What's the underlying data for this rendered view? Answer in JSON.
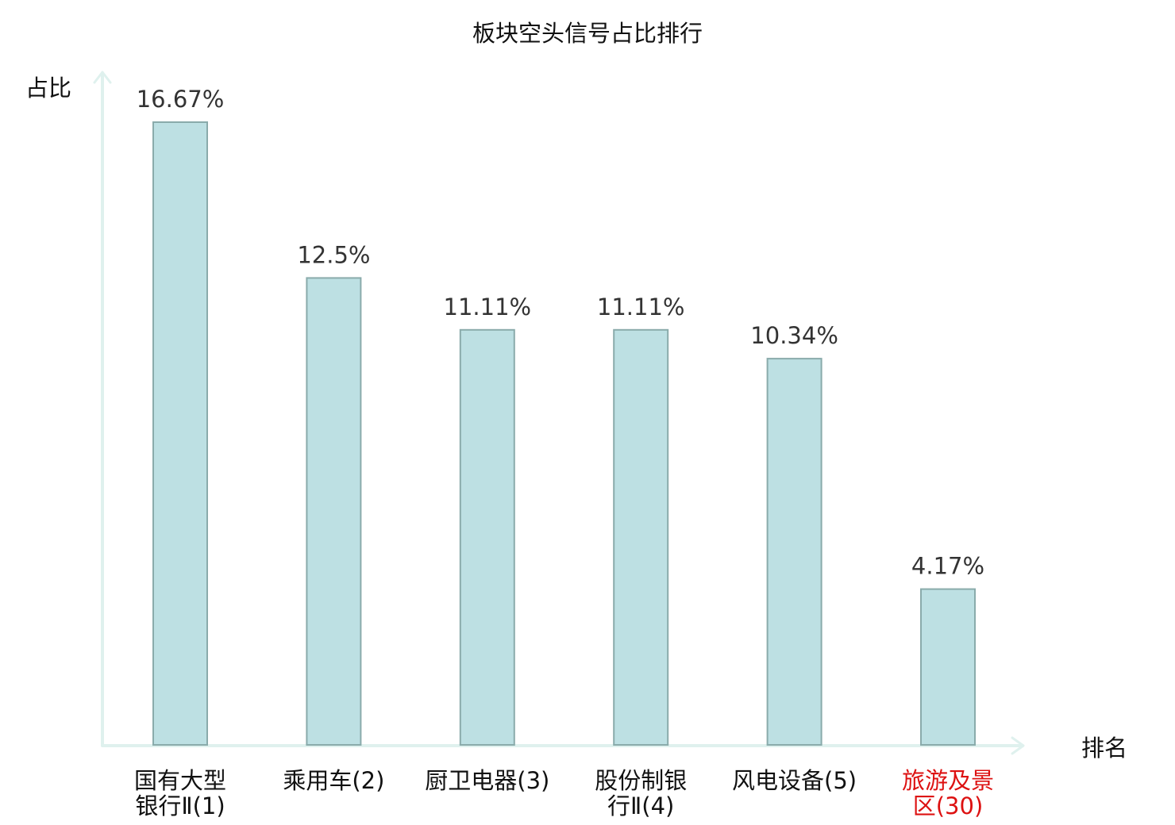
{
  "chart_data": {
    "type": "bar",
    "title": "板块空头信号占比排行",
    "ylabel": "占比",
    "xlabel": "排名",
    "ylim": [
      0,
      16.67
    ],
    "grid": false,
    "legend": "none",
    "categories": [
      [
        "国有大型",
        "银行Ⅱ(1)"
      ],
      [
        "乘用车(2)"
      ],
      [
        "厨卫电器(3)"
      ],
      [
        "股份制银",
        "行Ⅱ(4)"
      ],
      [
        "风电设备(5)"
      ],
      [
        "旅游及景",
        "区(30)"
      ]
    ],
    "values": [
      16.67,
      12.5,
      11.11,
      11.11,
      10.34,
      4.17
    ],
    "value_labels": [
      "16.67%",
      "12.5%",
      "11.11%",
      "11.11%",
      "10.34%",
      "4.17%"
    ],
    "category_colors": [
      "#111111",
      "#111111",
      "#111111",
      "#111111",
      "#111111",
      "#dd1111"
    ],
    "colors": {
      "bar_fill": "#bde0e3",
      "bar_stroke": "#8aabab",
      "axis": "#dff1ee"
    }
  }
}
